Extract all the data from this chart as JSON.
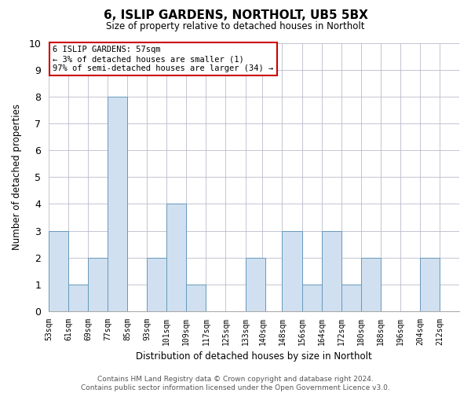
{
  "title": "6, ISLIP GARDENS, NORTHOLT, UB5 5BX",
  "subtitle": "Size of property relative to detached houses in Northolt",
  "xlabel": "Distribution of detached houses by size in Northolt",
  "ylabel": "Number of detached properties",
  "bin_edges": [
    53,
    61,
    69,
    77,
    85,
    93,
    101,
    109,
    117,
    125,
    133,
    140,
    148,
    156,
    164,
    172,
    180,
    188,
    196,
    204,
    212
  ],
  "bar_labels": [
    "53sqm",
    "61sqm",
    "69sqm",
    "77sqm",
    "85sqm",
    "93sqm",
    "101sqm",
    "109sqm",
    "117sqm",
    "125sqm",
    "133sqm",
    "140sqm",
    "148sqm",
    "156sqm",
    "164sqm",
    "172sqm",
    "180sqm",
    "188sqm",
    "196sqm",
    "204sqm",
    "212sqm"
  ],
  "heights": [
    3,
    1,
    2,
    8,
    0,
    2,
    4,
    1,
    0,
    0,
    2,
    0,
    3,
    1,
    3,
    1,
    2,
    0,
    0,
    2,
    0
  ],
  "bar_facecolor": "#d0e0f0",
  "bar_edgecolor": "#6699bb",
  "grid_color": "#bbbbcc",
  "background_color": "#ffffff",
  "annotation_text": "6 ISLIP GARDENS: 57sqm\n← 3% of detached houses are smaller (1)\n97% of semi-detached houses are larger (34) →",
  "annotation_box_edgecolor": "#cc0000",
  "annotation_box_facecolor": "#ffffff",
  "ylim": [
    0,
    10
  ],
  "yticks": [
    0,
    1,
    2,
    3,
    4,
    5,
    6,
    7,
    8,
    9,
    10
  ],
  "footer_line1": "Contains HM Land Registry data © Crown copyright and database right 2024.",
  "footer_line2": "Contains public sector information licensed under the Open Government Licence v3.0."
}
